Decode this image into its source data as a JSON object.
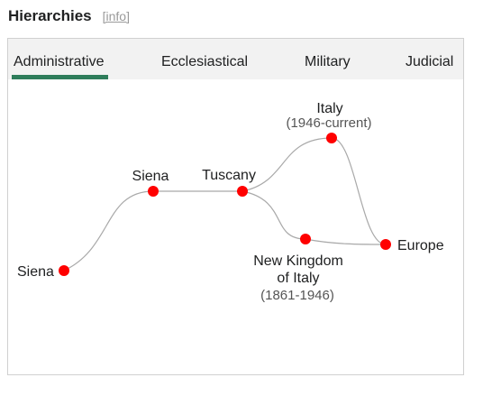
{
  "header": {
    "title": "Hierarchies",
    "info_label": "info"
  },
  "tabs": [
    {
      "label": "Administrative",
      "active": true
    },
    {
      "label": "Ecclesiastical",
      "active": false
    },
    {
      "label": "Military",
      "active": false
    },
    {
      "label": "Judicial",
      "active": false
    }
  ],
  "graph": {
    "node_color": "#ff0000",
    "edge_color": "#a9a9a9",
    "accent_color": "#2e7d5b",
    "nodes": {
      "siena_city": {
        "name": "Siena"
      },
      "siena_province": {
        "name": "Siena"
      },
      "tuscany": {
        "name": "Tuscany"
      },
      "italy": {
        "name": "Italy",
        "period": "(1946-current)"
      },
      "kingdom": {
        "name_line1": "New Kingdom",
        "name_line2": "of Italy",
        "period": "(1861-1946)"
      },
      "europe": {
        "name": "Europe"
      }
    }
  }
}
